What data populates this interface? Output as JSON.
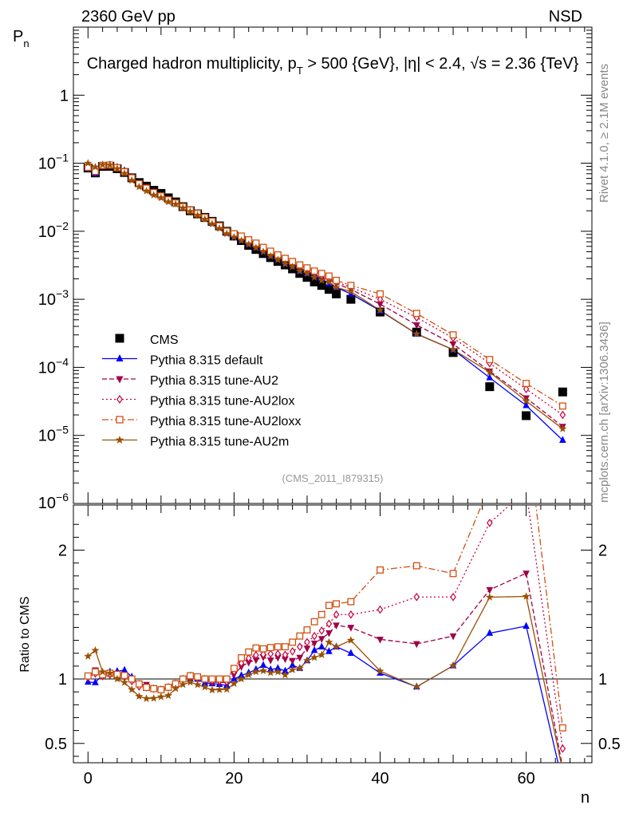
{
  "header": {
    "left": "2360 GeV pp",
    "right": "NSD",
    "title": "Charged hadron multiplicity, p_T > 500 {GeV}, |η| < 2.4, √s = 2.36 {TeV}",
    "watermark": "(CMS_2011_I879315)",
    "side_top": "Rivet 4.1.0, ≥ 2.1M events",
    "side_bottom": "mcplots.cern.ch [arXiv:1306.3436]"
  },
  "chart_data": [
    {
      "type": "scatter",
      "panel": "main",
      "title": "Charged hadron multiplicity, p_T > 500 {GeV}, |η| < 2.4, √s = 2.36 {TeV}",
      "ylabel": "P_n",
      "xlabel": "n",
      "yscale": "log",
      "xlim": [
        -2,
        69
      ],
      "ylim": [
        1e-06,
        10
      ],
      "yticks": [
        {
          "v": 1e-05,
          "base": "10",
          "exp": "−5"
        },
        {
          "v": 0.0001,
          "base": "10",
          "exp": "−4"
        },
        {
          "v": 0.001,
          "base": "10",
          "exp": "−3"
        },
        {
          "v": 0.01,
          "base": "10",
          "exp": "−2"
        },
        {
          "v": 0.1,
          "base": "10",
          "exp": "−1"
        },
        {
          "v": 1,
          "base": "1",
          "exp": ""
        }
      ],
      "ytick_bottom": {
        "base": "10",
        "exp": "−6"
      },
      "series": [
        {
          "name": "CMS",
          "color": "#000000",
          "marker": "square",
          "dash": "none",
          "x": [
            0,
            1,
            2,
            3,
            4,
            5,
            6,
            7,
            8,
            9,
            10,
            11,
            12,
            13,
            14,
            15,
            16,
            17,
            18,
            19,
            20,
            21,
            22,
            23,
            24,
            25,
            26,
            27,
            28,
            29,
            30,
            31,
            32,
            33,
            34,
            36,
            40,
            45,
            50,
            55,
            60,
            65
          ],
          "y": [
            0.085,
            0.072,
            0.09,
            0.09,
            0.083,
            0.073,
            0.061,
            0.052,
            0.046,
            0.04,
            0.036,
            0.031,
            0.027,
            0.023,
            0.02,
            0.018,
            0.016,
            0.014,
            0.012,
            0.01,
            0.0085,
            0.0073,
            0.0062,
            0.0054,
            0.0047,
            0.0041,
            0.0036,
            0.0032,
            0.0028,
            0.0024,
            0.0021,
            0.0018,
            0.0016,
            0.0014,
            0.0012,
            0.001,
            0.00065,
            0.00033,
            0.000165,
            5.2e-05,
            1.95e-05,
            4.35e-05
          ]
        },
        {
          "name": "Pythia 8.315 default",
          "color": "#0000ff",
          "marker": "triangle-up",
          "dash": "none",
          "x": [
            0,
            1,
            2,
            3,
            4,
            5,
            6,
            7,
            8,
            9,
            10,
            11,
            12,
            13,
            14,
            15,
            16,
            17,
            18,
            19,
            20,
            21,
            22,
            23,
            24,
            25,
            26,
            27,
            28,
            29,
            30,
            31,
            32,
            33,
            34,
            36,
            40,
            45,
            50,
            55,
            60,
            65
          ],
          "y": [
            0.083,
            0.07,
            0.093,
            0.095,
            0.088,
            0.078,
            0.062,
            0.05,
            0.043,
            0.037,
            0.033,
            0.029,
            0.026,
            0.023,
            0.02,
            0.018,
            0.0155,
            0.0135,
            0.0115,
            0.0095,
            0.0085,
            0.0075,
            0.0065,
            0.0058,
            0.0052,
            0.0044,
            0.0039,
            0.0034,
            0.0031,
            0.0026,
            0.0024,
            0.0022,
            0.002,
            0.0017,
            0.0015,
            0.0012,
            0.00068,
            0.00031,
            0.000182,
            7.05e-05,
            2.75e-05,
            8.5e-06
          ]
        },
        {
          "name": "Pythia 8.315 tune-AU2",
          "color": "#a00048",
          "marker": "triangle-down",
          "dash": "6,3",
          "x": [
            0,
            1,
            2,
            3,
            4,
            5,
            6,
            7,
            8,
            9,
            10,
            11,
            12,
            13,
            14,
            15,
            16,
            17,
            18,
            19,
            20,
            21,
            22,
            23,
            24,
            25,
            26,
            27,
            28,
            29,
            30,
            31,
            32,
            33,
            34,
            36,
            40,
            45,
            50,
            55,
            60,
            65
          ],
          "y": [
            0.087,
            0.077,
            0.093,
            0.094,
            0.086,
            0.075,
            0.061,
            0.05,
            0.044,
            0.037,
            0.033,
            0.029,
            0.026,
            0.023,
            0.02,
            0.018,
            0.016,
            0.0136,
            0.0117,
            0.0097,
            0.0088,
            0.008,
            0.007,
            0.0062,
            0.0055,
            0.0047,
            0.0042,
            0.0037,
            0.0032,
            0.0028,
            0.0026,
            0.0023,
            0.0021,
            0.0019,
            0.0017,
            0.0014,
            0.00085,
            0.00042,
            0.00022,
            8.8e-05,
            3.55e-05,
            1.35e-05
          ]
        },
        {
          "name": "Pythia 8.315 tune-AU2lox",
          "color": "#c8003c",
          "marker": "diamond-open",
          "dash": "2,3",
          "x": [
            0,
            1,
            2,
            3,
            4,
            5,
            6,
            7,
            8,
            9,
            10,
            11,
            12,
            13,
            14,
            15,
            16,
            17,
            18,
            19,
            20,
            21,
            22,
            23,
            24,
            25,
            26,
            27,
            28,
            29,
            30,
            31,
            32,
            33,
            34,
            36,
            40,
            45,
            50,
            55,
            60,
            65
          ],
          "y": [
            0.086,
            0.075,
            0.092,
            0.093,
            0.085,
            0.074,
            0.06,
            0.049,
            0.043,
            0.037,
            0.033,
            0.029,
            0.026,
            0.023,
            0.0205,
            0.0182,
            0.016,
            0.0138,
            0.0118,
            0.0098,
            0.009,
            0.0082,
            0.0072,
            0.0064,
            0.0056,
            0.0049,
            0.0043,
            0.0038,
            0.0034,
            0.003,
            0.0027,
            0.0024,
            0.0022,
            0.002,
            0.0018,
            0.0015,
            0.001,
            0.00054,
            0.00027,
            0.000115,
            4.8e-05,
            2e-05
          ]
        },
        {
          "name": "Pythia 8.315 tune-AU2loxx",
          "color": "#d05010",
          "marker": "square-open",
          "dash": "8,3,2,3",
          "x": [
            0,
            1,
            2,
            3,
            4,
            5,
            6,
            7,
            8,
            9,
            10,
            11,
            12,
            13,
            14,
            15,
            16,
            17,
            18,
            19,
            20,
            21,
            22,
            23,
            24,
            25,
            26,
            27,
            28,
            29,
            30,
            31,
            32,
            33,
            34,
            36,
            40,
            45,
            50,
            55,
            60,
            65
          ],
          "y": [
            0.087,
            0.076,
            0.093,
            0.094,
            0.086,
            0.075,
            0.061,
            0.05,
            0.043,
            0.037,
            0.033,
            0.029,
            0.026,
            0.023,
            0.0205,
            0.0183,
            0.016,
            0.014,
            0.012,
            0.01,
            0.0092,
            0.0085,
            0.0075,
            0.0067,
            0.0058,
            0.0051,
            0.0045,
            0.004,
            0.0036,
            0.0032,
            0.0029,
            0.0026,
            0.0024,
            0.0022,
            0.0019,
            0.0016,
            0.0012,
            0.00062,
            0.0003,
            0.00013,
            5.8e-05,
            2.7e-05
          ]
        },
        {
          "name": "Pythia 8.315 tune-AU2m",
          "color": "#9a5000",
          "marker": "star",
          "dash": "none",
          "x": [
            0,
            1,
            2,
            3,
            4,
            5,
            6,
            7,
            8,
            9,
            10,
            11,
            12,
            13,
            14,
            15,
            16,
            17,
            18,
            19,
            20,
            21,
            22,
            23,
            24,
            25,
            26,
            27,
            28,
            29,
            30,
            31,
            32,
            33,
            34,
            36,
            40,
            45,
            50,
            55,
            60,
            65
          ],
          "y": [
            0.1,
            0.088,
            0.095,
            0.094,
            0.083,
            0.071,
            0.056,
            0.045,
            0.039,
            0.034,
            0.031,
            0.027,
            0.025,
            0.022,
            0.0195,
            0.0172,
            0.015,
            0.0128,
            0.011,
            0.0092,
            0.0082,
            0.0073,
            0.0064,
            0.0057,
            0.005,
            0.0043,
            0.0038,
            0.0033,
            0.003,
            0.0026,
            0.0024,
            0.0021,
            0.0019,
            0.0018,
            0.0015,
            0.0013,
            0.00069,
            0.00031,
            0.000182,
            8.5e-05,
            3.2e-05,
            1.25e-05
          ]
        }
      ]
    },
    {
      "type": "line",
      "panel": "ratio",
      "ylabel": "Ratio to CMS",
      "xlabel": "n",
      "xlim": [
        -2,
        69
      ],
      "ylim": [
        0.35,
        2.35
      ],
      "yticks": [
        {
          "v": 0.5,
          "label": "0.5"
        },
        {
          "v": 1,
          "label": "1"
        },
        {
          "v": 2,
          "label": "2"
        }
      ],
      "xticks": [
        {
          "v": 0,
          "label": "0"
        },
        {
          "v": 20,
          "label": "20"
        },
        {
          "v": 40,
          "label": "40"
        },
        {
          "v": 60,
          "label": "60"
        }
      ],
      "reference": 1
    }
  ]
}
